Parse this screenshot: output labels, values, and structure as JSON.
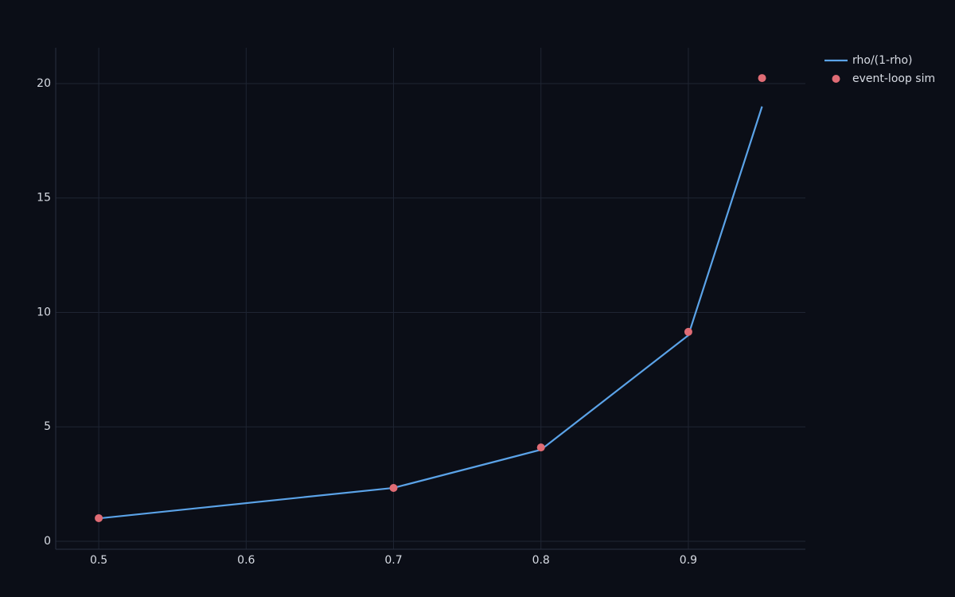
{
  "chart_data": {
    "type": "line",
    "x": [
      0.5,
      0.7,
      0.8,
      0.9,
      0.95
    ],
    "series": [
      {
        "name": "rho/(1-rho)",
        "color": "#5ba3e8",
        "mode": "lines",
        "values": [
          1,
          2.333,
          4,
          9,
          19
        ]
      },
      {
        "name": "event-loop sim",
        "color": "#e06c75",
        "mode": "markers",
        "values": [
          1.01,
          2.33,
          4.1,
          9.15,
          20.24
        ]
      }
    ],
    "xlim": [
      0.4708,
      0.9794
    ],
    "xticks": [
      0.5,
      0.6,
      0.7,
      0.8,
      0.9
    ],
    "ylim": [
      -0.348,
      21.565
    ],
    "yticks": [
      0,
      5,
      10,
      15,
      20
    ],
    "grid": true,
    "legend": "top-right"
  }
}
